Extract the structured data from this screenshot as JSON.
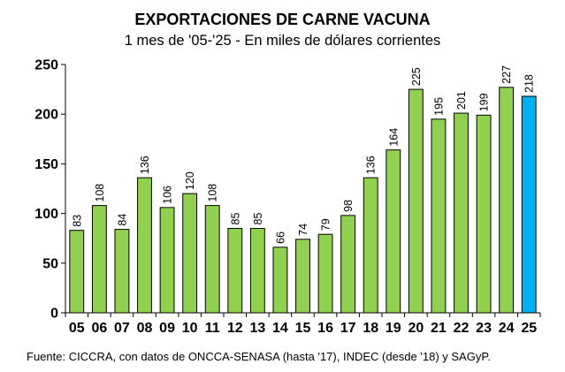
{
  "chart_data": {
    "type": "bar",
    "title": "EXPORTACIONES DE CARNE VACUNA",
    "subtitle": "1 mes de '05-'25 - En miles de dólares corrientes",
    "categories": [
      "05",
      "06",
      "07",
      "08",
      "09",
      "10",
      "11",
      "12",
      "13",
      "14",
      "15",
      "16",
      "17",
      "18",
      "19",
      "20",
      "21",
      "22",
      "23",
      "24",
      "25"
    ],
    "values": [
      83,
      108,
      84,
      136,
      106,
      120,
      108,
      85,
      85,
      66,
      74,
      79,
      98,
      136,
      164,
      225,
      195,
      201,
      199,
      227,
      218
    ],
    "ylim": [
      0,
      250
    ],
    "yticks": [
      0,
      50,
      100,
      150,
      200,
      250
    ],
    "xlabel": "",
    "ylabel": "",
    "grid": false,
    "colors": {
      "default_bar": "#92d050",
      "highlight_bar": "#00b0f0",
      "bar_stroke": "#000000"
    },
    "highlight_category": "25"
  },
  "source": "Fuente: CICCRA, con datos de ONCCA-SENASA (hasta '17), INDEC (desde '18) y SAGyP."
}
